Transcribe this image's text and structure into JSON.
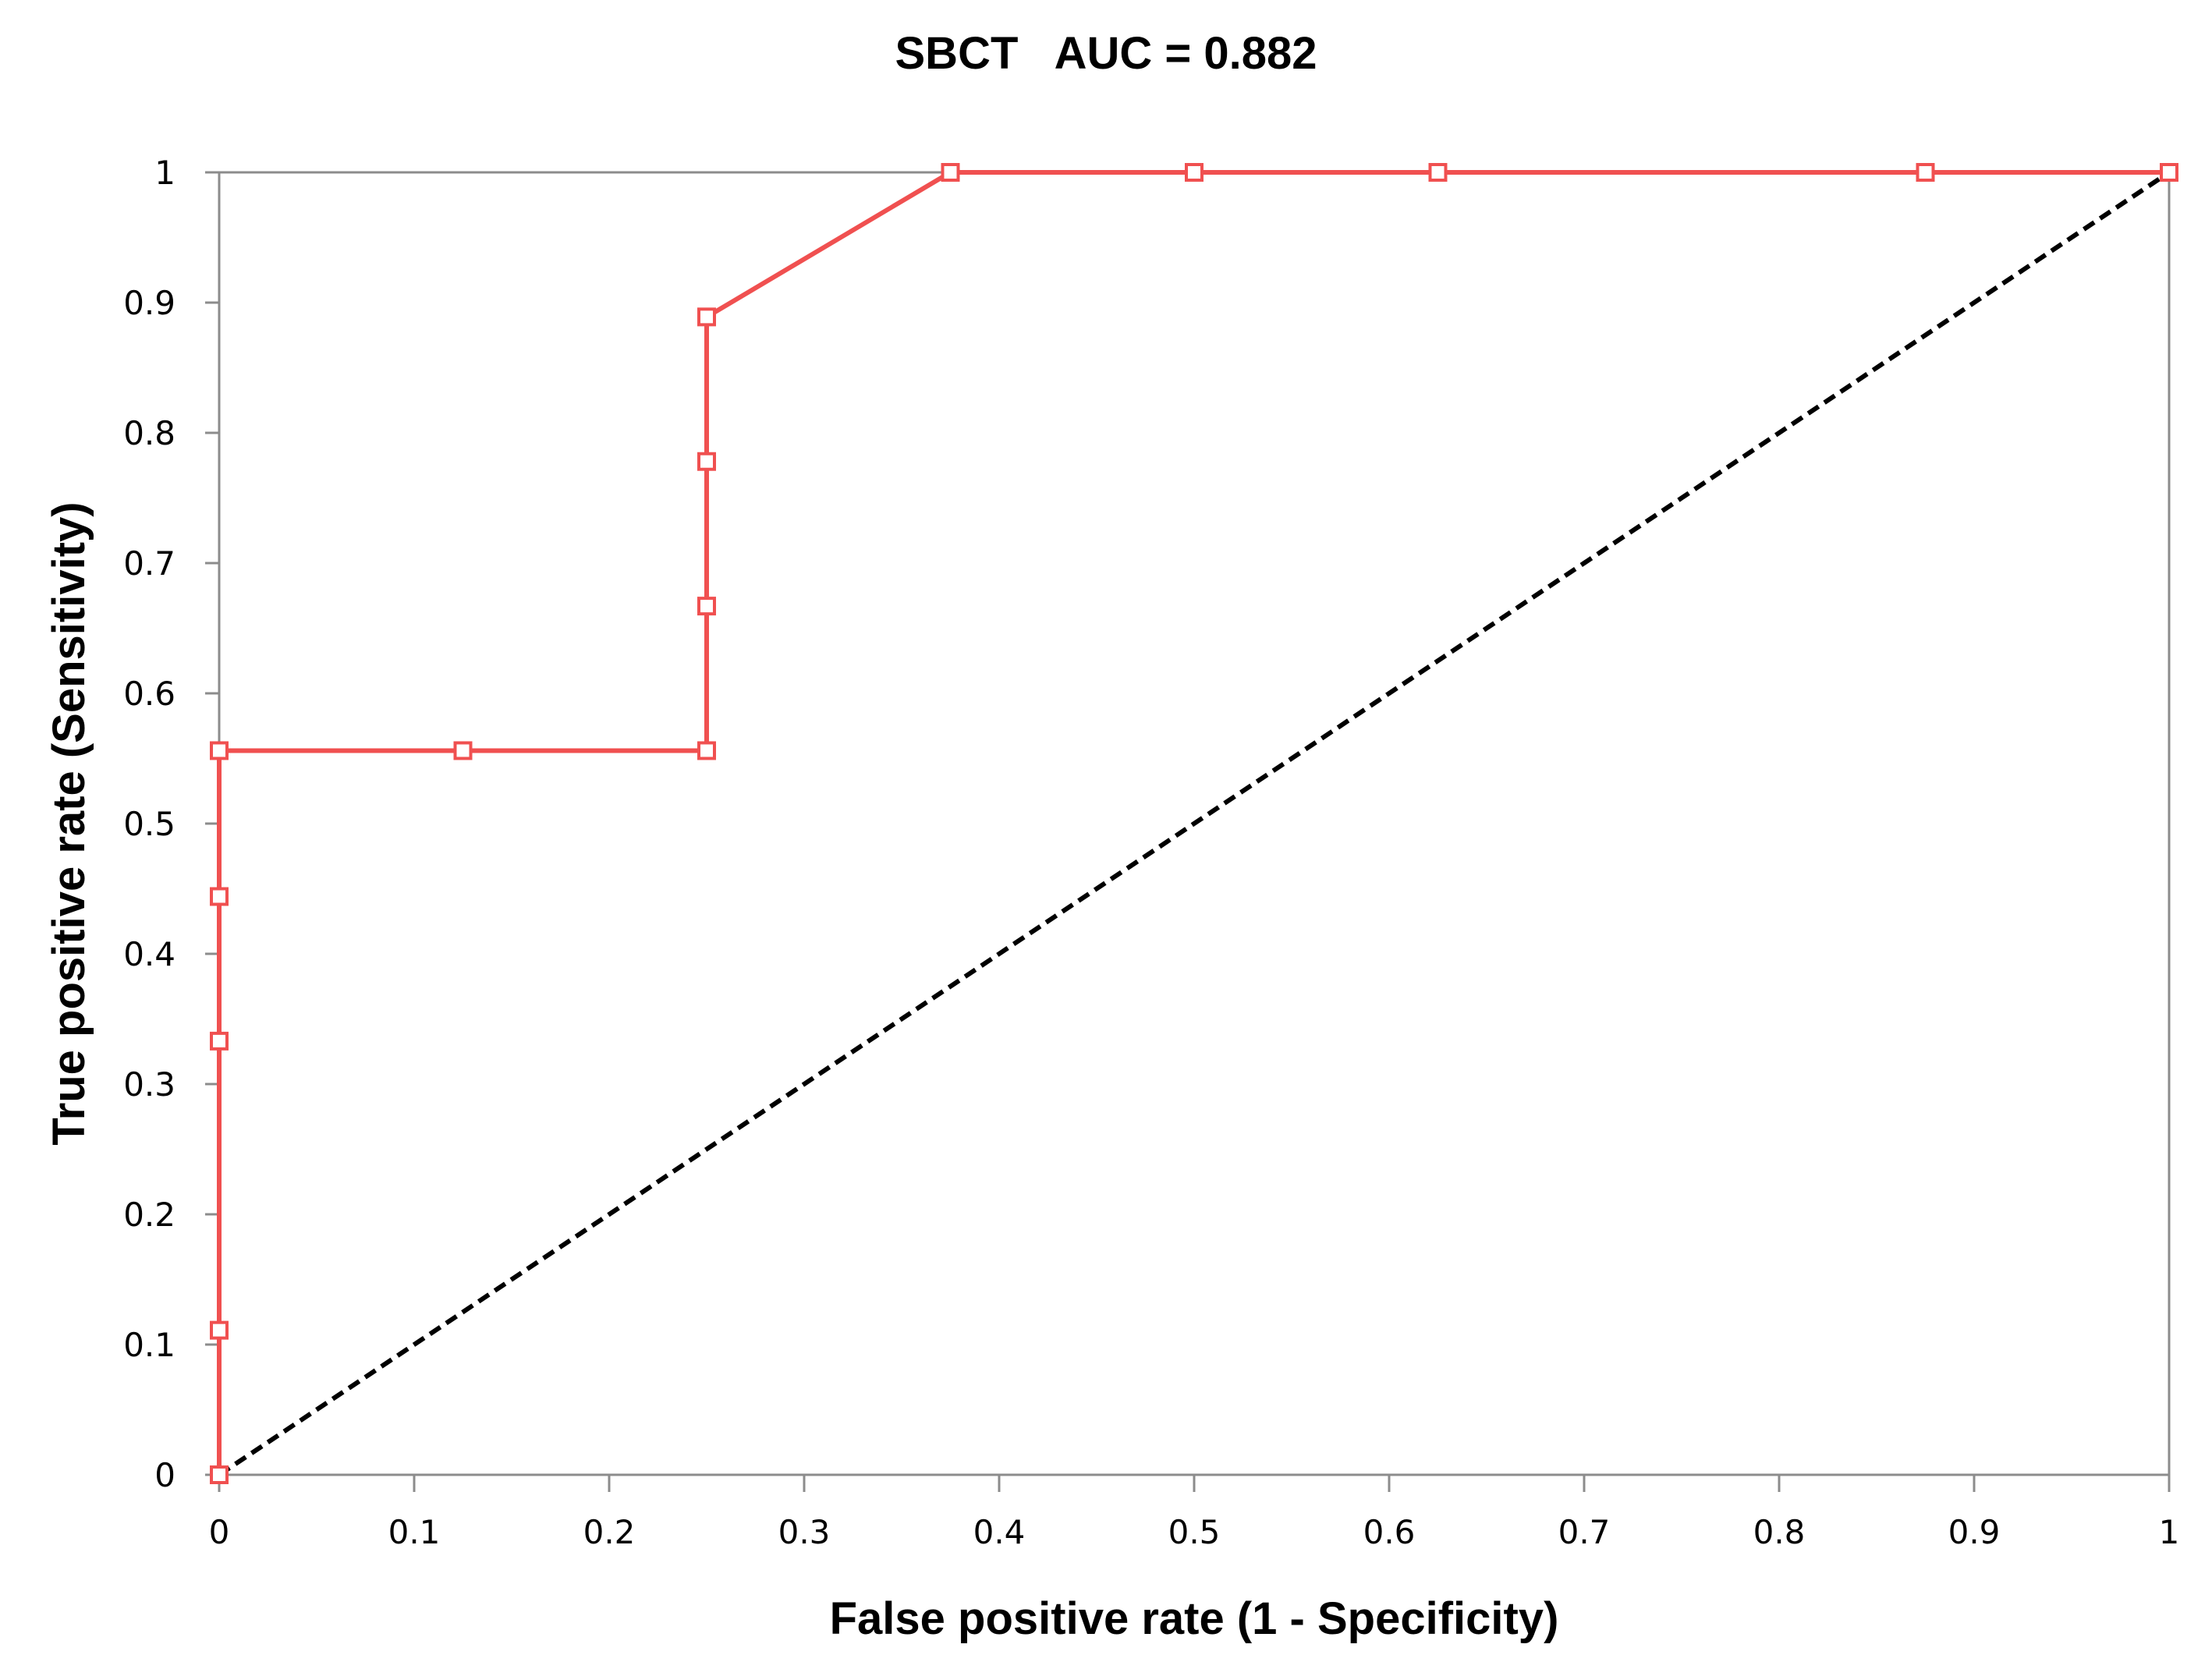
{
  "chart_data": {
    "type": "line",
    "title": "SBCT   AUC = 0.882",
    "xlabel": "False positive rate (1 - Specificity)",
    "ylabel": "True positive rate (Sensitivity)",
    "xlim": [
      0,
      1
    ],
    "ylim": [
      0,
      1
    ],
    "x_ticks": [
      "0",
      "0.1",
      "0.2",
      "0.3",
      "0.4",
      "0.5",
      "0.6",
      "0.7",
      "0.8",
      "0.9",
      "1"
    ],
    "y_ticks": [
      "0",
      "0.1",
      "0.2",
      "0.3",
      "0.4",
      "0.5",
      "0.6",
      "0.7",
      "0.8",
      "0.9",
      "1"
    ],
    "grid": false,
    "legend": "none",
    "series": [
      {
        "style": "solid-line-with-square-markers",
        "color": "#f05050",
        "x": [
          0,
          0,
          0,
          0,
          0,
          0.125,
          0.25,
          0.25,
          0.25,
          0.25,
          0.375,
          0.5,
          0.625,
          0.875,
          1
        ],
        "y": [
          0,
          0.111,
          0.333,
          0.444,
          0.556,
          0.556,
          0.556,
          0.667,
          0.778,
          0.889,
          1,
          1,
          1,
          1,
          1
        ]
      },
      {
        "style": "dashed-line",
        "color": "#000000",
        "x": [
          0,
          1
        ],
        "y": [
          0,
          1
        ]
      }
    ]
  }
}
